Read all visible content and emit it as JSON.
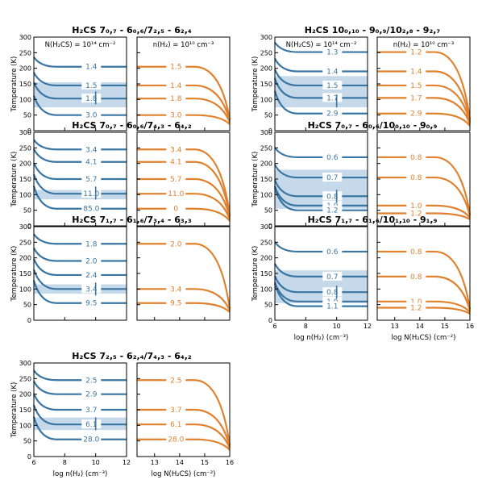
{
  "colors": {
    "blue": "#3a76a3",
    "blue_band": "#c6d9ea",
    "orange": "#e0812e"
  },
  "labels": {
    "left_ylabel": "Temperature (K)",
    "left_xlabel": "log n(H₂) (cm⁻³)",
    "right_xlabel": "log N(H₂CS) (cm⁻²)",
    "left_note": "N(H₂CS) = 10¹⁴ cm⁻²",
    "right_note": "n(H₂) = 10¹⁰ cm⁻³"
  },
  "chart_data": [
    {
      "type": "line",
      "title": "H₂CS 7₀,₇ - 6₀,₆/7₂,₅ - 6₂,₄",
      "left": {
        "xlim": [
          6,
          12
        ],
        "ylim": [
          0,
          300
        ],
        "note": "N(H₂CS) = 10¹⁴ cm⁻²",
        "band": [
          75,
          155
        ],
        "marker": [
          10,
          105
        ],
        "contours": [
          {
            "label": "1.4",
            "t": 205
          },
          {
            "label": "1.5",
            "t": 145
          },
          {
            "label": "1.8",
            "t": 103
          },
          {
            "label": "3.0",
            "t": 50
          }
        ]
      },
      "right": {
        "xlim": [
          12.3,
          16
        ],
        "ylim": [
          0,
          300
        ],
        "note": "n(H₂) = 10¹⁰ cm⁻³",
        "contours": [
          {
            "label": "1.5",
            "t": 205
          },
          {
            "label": "1.4",
            "t": 145
          },
          {
            "label": "1.8",
            "t": 103
          },
          {
            "label": "3.0",
            "t": 50
          }
        ]
      }
    },
    {
      "type": "line",
      "title": "H₂CS 10₀,₁₀ - 9₀,₉/10₂,₈ - 9₂,₇",
      "left": {
        "xlim": [
          6,
          12
        ],
        "ylim": [
          0,
          300
        ],
        "note": "N(H₂CS) = 10¹⁴ cm⁻²",
        "band": [
          75,
          175
        ],
        "marker": [
          10,
          95
        ],
        "contours": [
          {
            "label": "1.3",
            "t": 252
          },
          {
            "label": "1.4",
            "t": 190
          },
          {
            "label": "1.5",
            "t": 145
          },
          {
            "label": "1.7",
            "t": 105
          },
          {
            "label": "2.9",
            "t": 55
          }
        ]
      },
      "right": {
        "xlim": [
          12.3,
          16
        ],
        "ylim": [
          0,
          300
        ],
        "note": "n(H₂) = 10¹⁰ cm⁻³",
        "contours": [
          {
            "label": "1.2",
            "t": 252
          },
          {
            "label": "1.4",
            "t": 190
          },
          {
            "label": "1.5",
            "t": 145
          },
          {
            "label": "1.7",
            "t": 105
          },
          {
            "label": "2.9",
            "t": 55
          }
        ]
      }
    },
    {
      "type": "line",
      "title": "H₂CS 7₀,₇ - 6₀,₆/7₄,₃ - 6₄,₂",
      "left": {
        "xlim": [
          6,
          12
        ],
        "ylim": [
          0,
          300
        ],
        "band": [
          85,
          115
        ],
        "marker": [
          10,
          105
        ],
        "contours": [
          {
            "label": "3.4",
            "t": 245
          },
          {
            "label": "4.1",
            "t": 205
          },
          {
            "label": "5.7",
            "t": 150
          },
          {
            "label": "11.0",
            "t": 103
          },
          {
            "label": "85.0",
            "t": 55
          }
        ]
      },
      "right": {
        "xlim": [
          12.3,
          16
        ],
        "ylim": [
          0,
          300
        ],
        "contours": [
          {
            "label": "3.4",
            "t": 245
          },
          {
            "label": "4.1",
            "t": 205
          },
          {
            "label": "5.7",
            "t": 150
          },
          {
            "label": "11.0",
            "t": 103
          },
          {
            "label": "0",
            "t": 55
          }
        ]
      }
    },
    {
      "type": "line",
      "title": "H₂CS 7₀,₇ - 6₀,₆/10₀,₁₀ - 9₀,₉",
      "left": {
        "xlim": [
          6,
          12
        ],
        "ylim": [
          0,
          300
        ],
        "band": [
          55,
          180
        ],
        "marker": [
          10,
          95
        ],
        "contours": [
          {
            "label": "0.6",
            "t": 220
          },
          {
            "label": "0.7",
            "t": 155
          },
          {
            "label": "0.8",
            "t": 95
          },
          {
            "label": "1.0",
            "t": 65
          },
          {
            "label": "1.2",
            "t": 50
          }
        ]
      },
      "right": {
        "xlim": [
          12.3,
          16
        ],
        "ylim": [
          0,
          300
        ],
        "contours": [
          {
            "label": "0.8",
            "t": 220
          },
          {
            "label": "0.8",
            "t": 155
          },
          {
            "label": "1.0",
            "t": 65
          },
          {
            "label": "1.2",
            "t": 40
          }
        ]
      }
    },
    {
      "type": "line",
      "title": "H₂CS 7₁,₇ - 6₁,₆/7₃,₄ - 6₃,₃",
      "left": {
        "xlim": [
          6,
          12
        ],
        "ylim": [
          0,
          300
        ],
        "band": [
          85,
          115
        ],
        "marker": [
          10,
          100
        ],
        "contours": [
          {
            "label": "1.8",
            "t": 245
          },
          {
            "label": "2.0",
            "t": 190
          },
          {
            "label": "2.4",
            "t": 145
          },
          {
            "label": "3.4",
            "t": 100
          },
          {
            "label": "9.5",
            "t": 55
          }
        ]
      },
      "right": {
        "xlim": [
          12.3,
          16
        ],
        "ylim": [
          0,
          300
        ],
        "contours": [
          {
            "label": "2.0",
            "t": 245
          },
          {
            "label": "3.4",
            "t": 100
          },
          {
            "label": "9.5",
            "t": 55
          }
        ]
      }
    },
    {
      "type": "line",
      "title": "H₂CS 7₁,₇ - 6₁,₆/10₁,₁₀ - 9₁,₉",
      "left": {
        "xlim": [
          6,
          12
        ],
        "ylim": [
          0,
          300
        ],
        "band": [
          55,
          160
        ],
        "marker": [
          10,
          90
        ],
        "contours": [
          {
            "label": "0.6",
            "t": 220
          },
          {
            "label": "0.7",
            "t": 140
          },
          {
            "label": "0.8",
            "t": 90
          },
          {
            "label": "1.0",
            "t": 60
          },
          {
            "label": "1.1",
            "t": 45
          }
        ]
      },
      "right": {
        "xlim": [
          12.3,
          16
        ],
        "ylim": [
          0,
          300
        ],
        "contours": [
          {
            "label": "0.8",
            "t": 220
          },
          {
            "label": "0.8",
            "t": 140
          },
          {
            "label": "1.0",
            "t": 60
          },
          {
            "label": "1.2",
            "t": 40
          }
        ]
      }
    },
    {
      "type": "line",
      "title": "H₂CS 7₂,₅ - 6₂,₄/7₄,₃ - 6₄,₂",
      "left": {
        "xlim": [
          6,
          12
        ],
        "ylim": [
          0,
          300
        ],
        "band": [
          85,
          125
        ],
        "marker": [
          10,
          105
        ],
        "contours": [
          {
            "label": "2.5",
            "t": 245
          },
          {
            "label": "2.9",
            "t": 200
          },
          {
            "label": "3.7",
            "t": 150
          },
          {
            "label": "6.1",
            "t": 103
          },
          {
            "label": "28.0",
            "t": 55
          }
        ]
      },
      "right": {
        "xlim": [
          12.3,
          16
        ],
        "ylim": [
          0,
          300
        ],
        "contours": [
          {
            "label": "2.5",
            "t": 245
          },
          {
            "label": "3.7",
            "t": 150
          },
          {
            "label": "6.1",
            "t": 103
          },
          {
            "label": "28.0",
            "t": 55
          }
        ]
      }
    }
  ]
}
